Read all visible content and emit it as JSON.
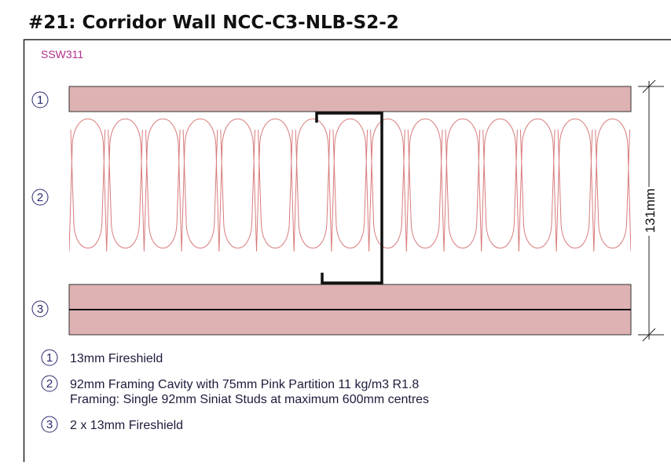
{
  "title": "#21: Corridor Wall NCC-C3-NLB-S2-2",
  "code": "SSW311",
  "dimension": "131mm",
  "layers": [
    {
      "number": "1",
      "lines": [
        "13mm Fireshield"
      ]
    },
    {
      "number": "2",
      "lines": [
        "92mm Framing Cavity with 75mm Pink Partition 11 kg/m3 R1.8",
        "Framing: Single 92mm Siniat Studs at maximum 600mm centres"
      ]
    },
    {
      "number": "3",
      "lines": [
        "2 x 13mm Fireshield"
      ]
    }
  ]
}
